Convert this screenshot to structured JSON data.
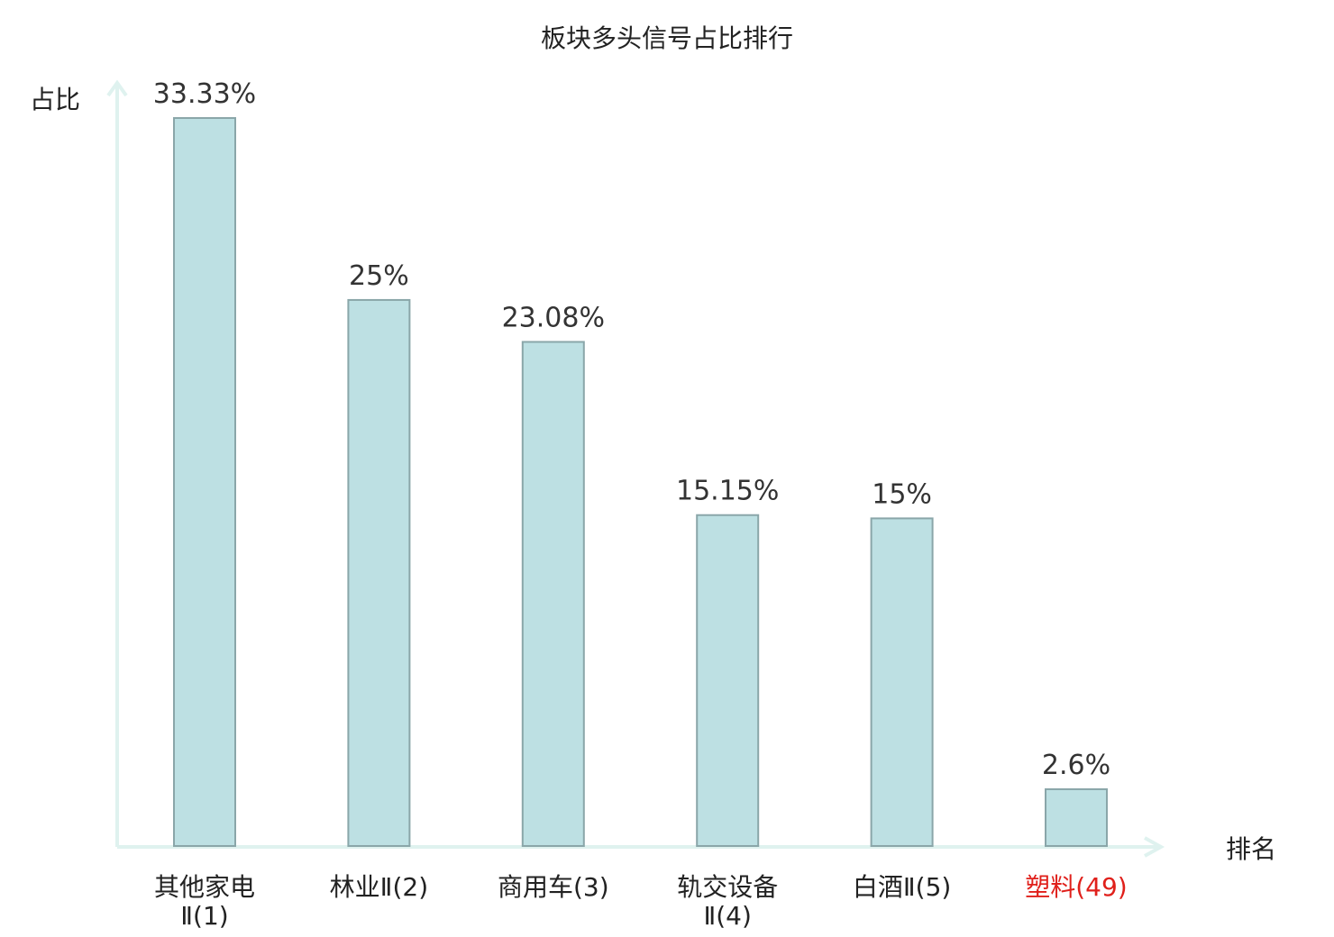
{
  "chart_data": {
    "type": "bar",
    "title": "板块多头信号占比排行",
    "ylabel": "占比",
    "xlabel": "排名",
    "categories": [
      [
        "其他家电",
        "Ⅱ(1)"
      ],
      [
        "林业Ⅱ(2)"
      ],
      [
        "商用车(3)"
      ],
      [
        "轨交设备",
        "Ⅱ(4)"
      ],
      [
        "白酒Ⅱ(5)"
      ],
      [
        "塑料(49)"
      ]
    ],
    "values": [
      33.33,
      25,
      23.08,
      15.15,
      15,
      2.6
    ],
    "value_labels": [
      "33.33%",
      "25%",
      "23.08%",
      "15.15%",
      "15%",
      "2.6%"
    ],
    "highlight_index": 5,
    "ylim": [
      0,
      35
    ],
    "grid": false,
    "legend": "none"
  },
  "colors": {
    "bar_fill": "#bde0e3",
    "bar_stroke": "#8aa6a9",
    "axis": "#dff2ef",
    "highlight_text": "#e0201b"
  }
}
